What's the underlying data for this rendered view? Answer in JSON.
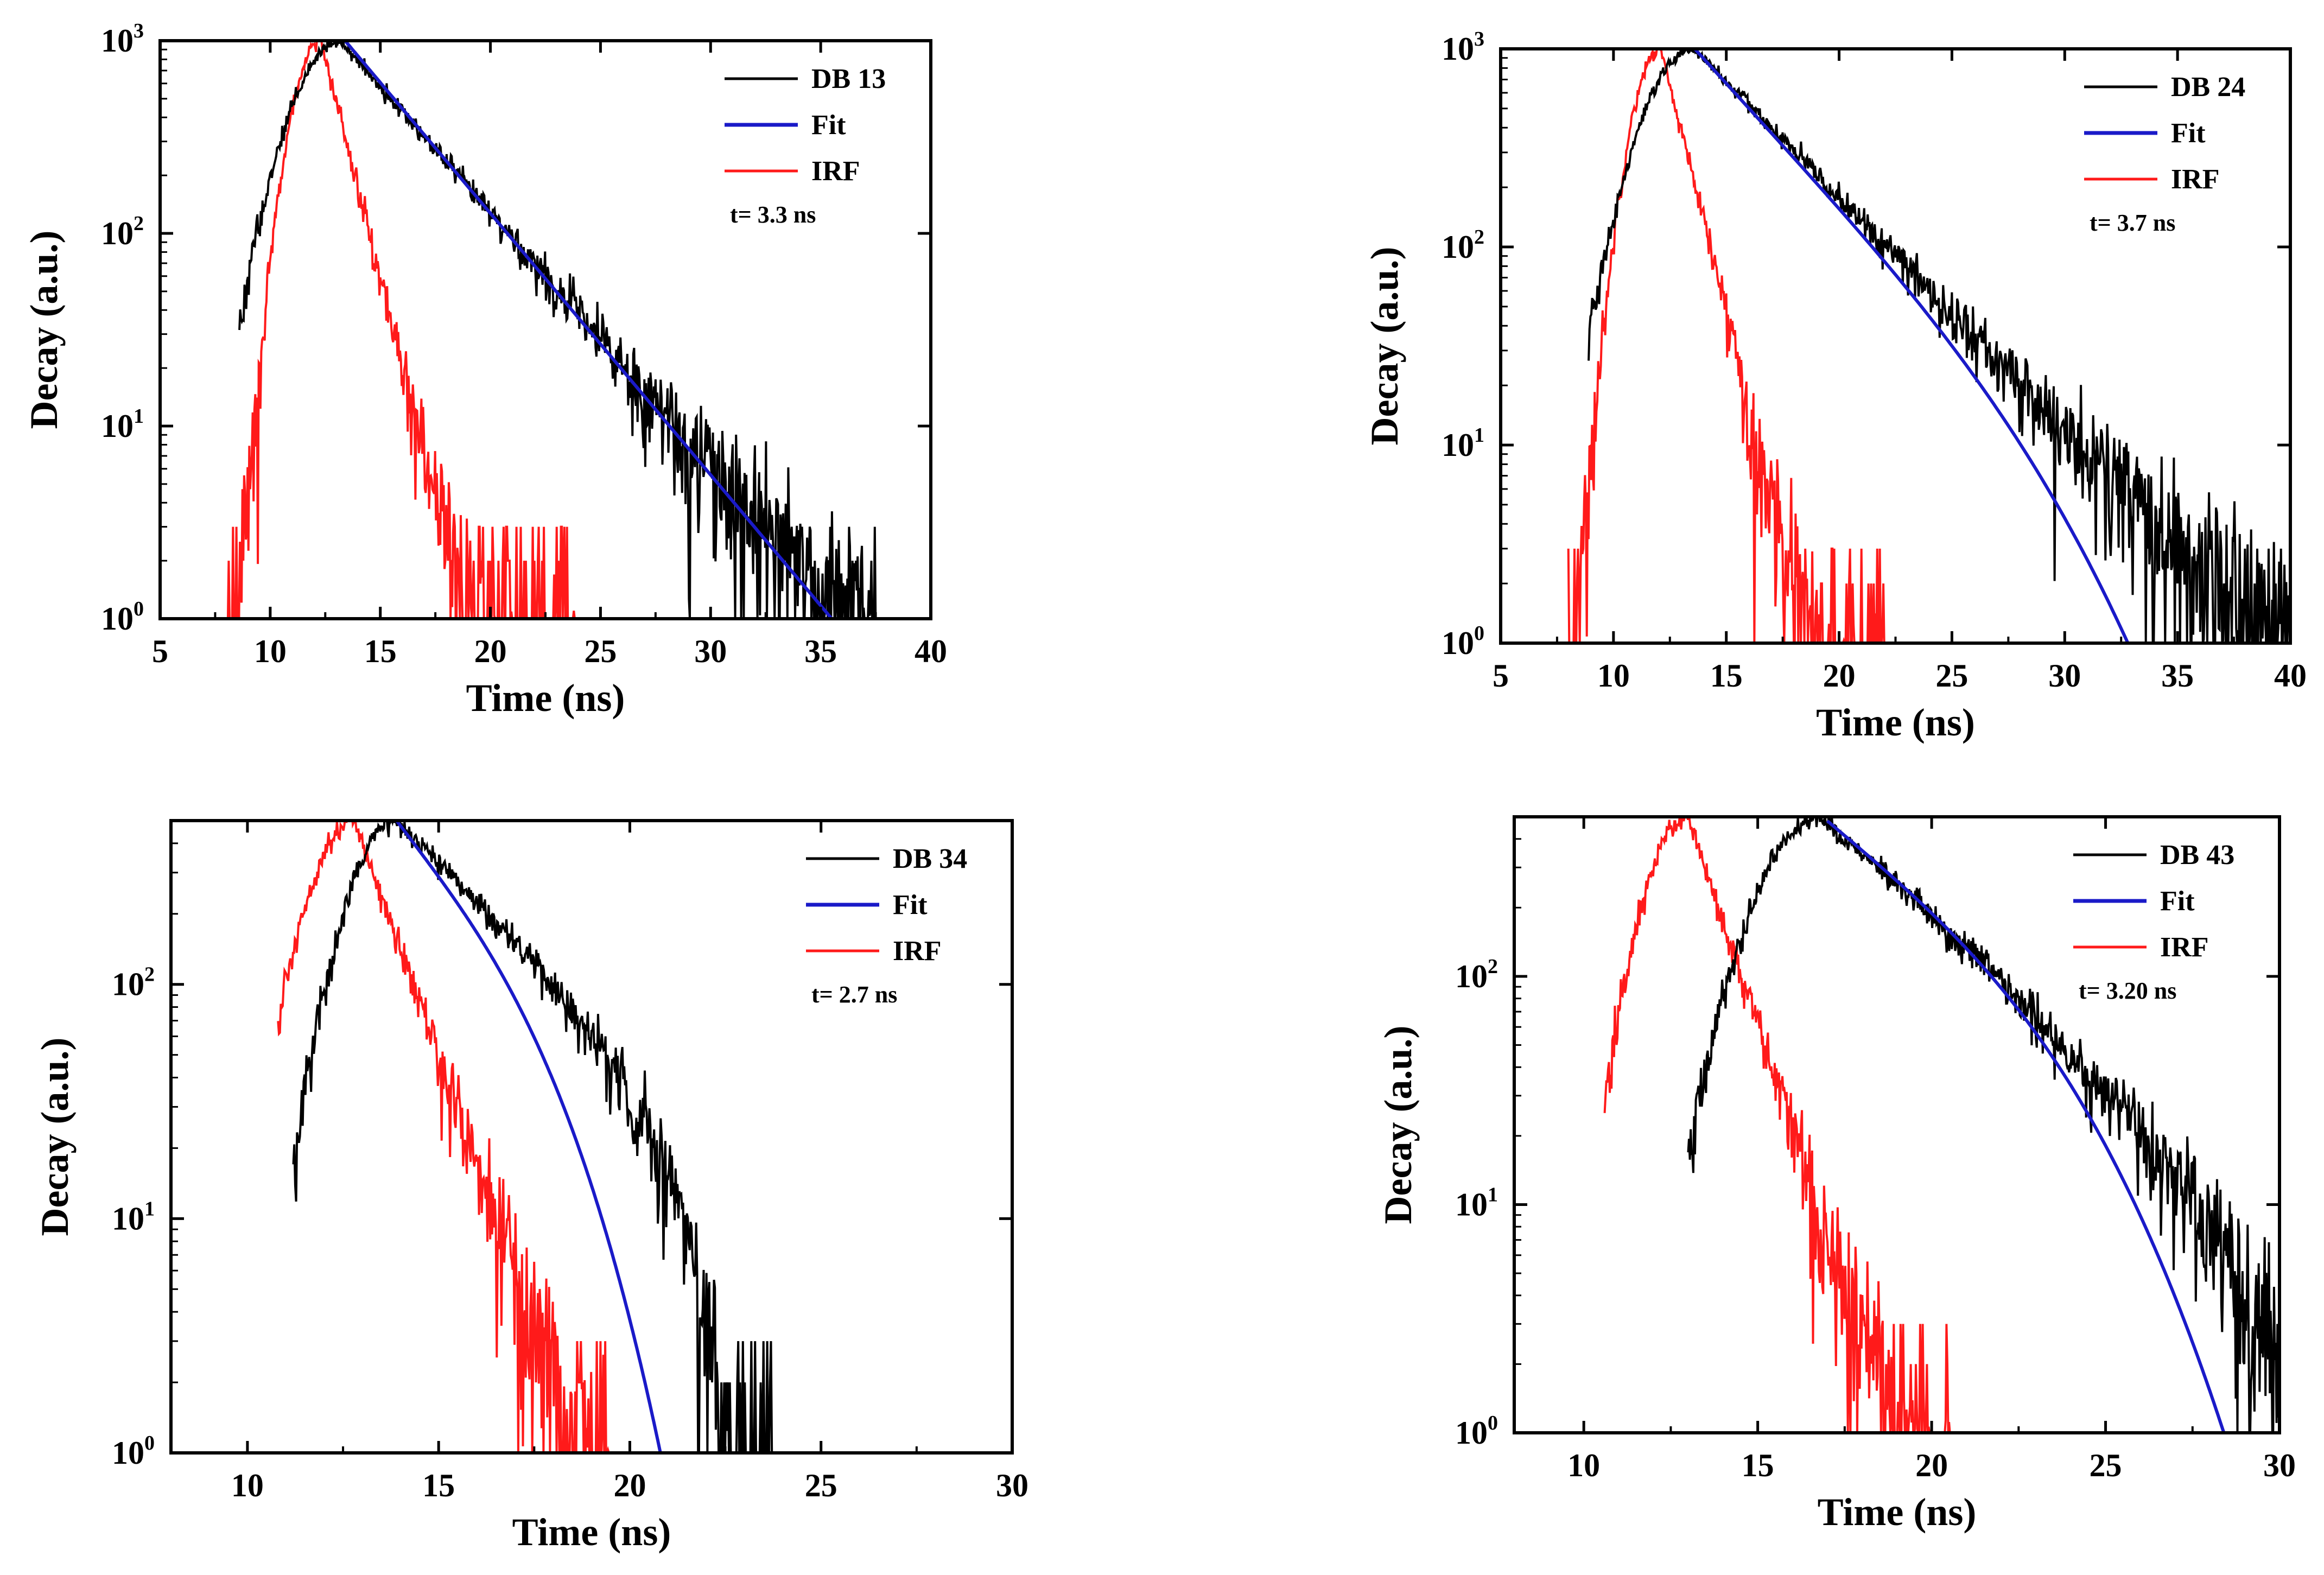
{
  "figure_title": "",
  "chart_data": [
    {
      "type": "line",
      "panel": "top-left",
      "title": "",
      "xlabel": "Time (ns)",
      "ylabel": "Decay (a.u.)",
      "xlim": [
        5,
        40
      ],
      "ylim": [
        1,
        1000
      ],
      "yscale": "log",
      "xticks": [
        5,
        10,
        15,
        20,
        25,
        30,
        35,
        40
      ],
      "yticks": [
        {
          "base": "10",
          "exp": "0",
          "value": 1
        },
        {
          "base": "10",
          "exp": "1",
          "value": 10
        },
        {
          "base": "10",
          "exp": "2",
          "value": 100
        },
        {
          "base": "10",
          "exp": "3",
          "value": 1000
        }
      ],
      "legend_position": "top-right",
      "annotation": "t= 3.3 ns",
      "series": [
        {
          "name": "DB 13",
          "color": "#000000",
          "peak_time": 13.2,
          "peak_value": 1000,
          "rise_start": 8.6,
          "tail_end": 37.5,
          "tau": 3.3,
          "noise": "high-at-tail"
        },
        {
          "name": "Fit",
          "color": "#1a1ac8",
          "start": 13.4,
          "end": 35.5,
          "start_value": 1000,
          "end_value": 1,
          "tau": 3.3
        },
        {
          "name": "IRF",
          "color": "#ff1a1a",
          "peak_time": 12.3,
          "peak_value": 1000,
          "rise_start": 8.0,
          "tail_end": 24.0,
          "noise": "high-at-tail"
        }
      ]
    },
    {
      "type": "line",
      "panel": "top-right",
      "title": "",
      "xlabel": "Time (ns)",
      "ylabel": "Decay (a.u.)",
      "xlim": [
        5,
        40
      ],
      "ylim": [
        1,
        1000
      ],
      "yscale": "log",
      "xticks": [
        5,
        10,
        15,
        20,
        25,
        30,
        35,
        40
      ],
      "yticks": [
        {
          "base": "10",
          "exp": "0",
          "value": 1
        },
        {
          "base": "10",
          "exp": "1",
          "value": 10
        },
        {
          "base": "10",
          "exp": "2",
          "value": 100
        },
        {
          "base": "10",
          "exp": "3",
          "value": 1000
        }
      ],
      "legend_position": "top-right",
      "annotation": "t= 3.7 ns",
      "series": [
        {
          "name": "DB 24",
          "color": "#000000",
          "peak_time": 13.6,
          "peak_value": 1000,
          "rise_start": 8.9,
          "tail_end": 40.0,
          "tau": 3.7,
          "noise": "high-at-tail"
        },
        {
          "name": "Fit",
          "color": "#1a1ac8",
          "start": 13.6,
          "end": 32.8,
          "start_value": 1000,
          "end_value": 1,
          "tau": 3.7
        },
        {
          "name": "IRF",
          "color": "#ff1a1a",
          "peak_time": 12.1,
          "peak_value": 1000,
          "rise_start": 8.0,
          "tail_end": 22.0,
          "noise": "high-at-tail"
        }
      ]
    },
    {
      "type": "line",
      "panel": "bottom-left",
      "title": "",
      "xlabel": "Time (ns)",
      "ylabel": "Decay (a.u.)",
      "xlim": [
        8,
        30
      ],
      "ylim": [
        1,
        500
      ],
      "yscale": "log",
      "xticks": [
        10,
        15,
        20,
        25,
        30
      ],
      "yticks": [
        {
          "base": "10",
          "exp": "0",
          "value": 1
        },
        {
          "base": "10",
          "exp": "1",
          "value": 10
        },
        {
          "base": "10",
          "exp": "2",
          "value": 100
        }
      ],
      "legend_position": "top-right",
      "annotation": "t= 2.7 ns",
      "series": [
        {
          "name": "DB 34",
          "color": "#000000",
          "peak_time": 13.9,
          "peak_value": 500,
          "rise_start": 11.2,
          "tail_end": 23.8,
          "tau": 2.7,
          "noise": "high-at-tail"
        },
        {
          "name": "Fit",
          "color": "#1a1ac8",
          "start": 13.9,
          "end": 20.8,
          "start_value": 500,
          "end_value": 1,
          "tau": 2.7
        },
        {
          "name": "IRF",
          "color": "#ff1a1a",
          "peak_time": 12.8,
          "peak_value": 500,
          "rise_start": 10.8,
          "tail_end": 19.5,
          "noise": "high-at-tail"
        }
      ]
    },
    {
      "type": "line",
      "panel": "bottom-right",
      "title": "",
      "xlabel": "Time (ns)",
      "ylabel": "Decay (a.u.)",
      "xlim": [
        8,
        30
      ],
      "ylim": [
        1,
        500
      ],
      "yscale": "log",
      "xticks": [
        10,
        15,
        20,
        25,
        30
      ],
      "yticks": [
        {
          "base": "10",
          "exp": "0",
          "value": 1
        },
        {
          "base": "10",
          "exp": "1",
          "value": 10
        },
        {
          "base": "10",
          "exp": "2",
          "value": 100
        }
      ],
      "legend_position": "top-right",
      "annotation": "t= 3.20 ns",
      "series": [
        {
          "name": "DB 43",
          "color": "#000000",
          "peak_time": 16.8,
          "peak_value": 500,
          "rise_start": 13.0,
          "tail_end": 30.0,
          "tau": 3.2,
          "noise": "high-at-tail"
        },
        {
          "name": "Fit",
          "color": "#1a1ac8",
          "start": 17.0,
          "end": 28.4,
          "start_value": 480,
          "end_value": 1,
          "tau": 3.2
        },
        {
          "name": "IRF",
          "color": "#ff1a1a",
          "peak_time": 13.0,
          "peak_value": 500,
          "rise_start": 10.6,
          "tail_end": 20.6,
          "noise": "high-at-tail"
        }
      ]
    }
  ]
}
